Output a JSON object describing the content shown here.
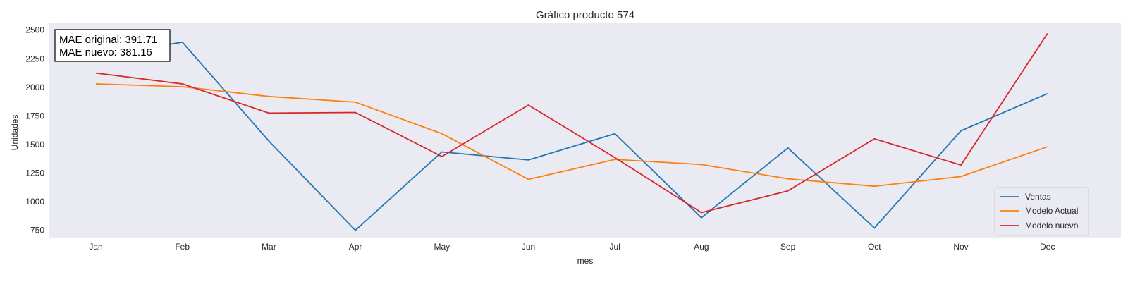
{
  "chart_data": {
    "type": "line",
    "title": "Gráfico producto 574",
    "xlabel": "mes",
    "ylabel": "Unidades",
    "categories": [
      "Jan",
      "Feb",
      "Mar",
      "Apr",
      "May",
      "Jun",
      "Jul",
      "Aug",
      "Sep",
      "Oct",
      "Nov",
      "Dec"
    ],
    "ylim": [
      680,
      2560
    ],
    "yticks": [
      750,
      1000,
      1250,
      1500,
      1750,
      2000,
      2250,
      2500
    ],
    "grid": false,
    "legend_position": "bottom-right",
    "series": [
      {
        "name": "Ventas",
        "color": "#1f77b4",
        "values": [
          2270,
          2395,
          1530,
          750,
          1435,
          1365,
          1595,
          860,
          1470,
          770,
          1620,
          1945
        ]
      },
      {
        "name": "Modelo Actual",
        "color": "#ff7f0e",
        "values": [
          2030,
          2005,
          1920,
          1870,
          1595,
          1195,
          1370,
          1325,
          1200,
          1135,
          1220,
          1480
        ]
      },
      {
        "name": "Modelo nuevo",
        "color": "#d62728",
        "values": [
          2125,
          2030,
          1775,
          1780,
          1395,
          1845,
          1385,
          905,
          1095,
          1550,
          1320,
          2470
        ]
      }
    ],
    "annotations": [
      "MAE original: 391.71",
      "MAE nuevo: 381.16"
    ]
  }
}
